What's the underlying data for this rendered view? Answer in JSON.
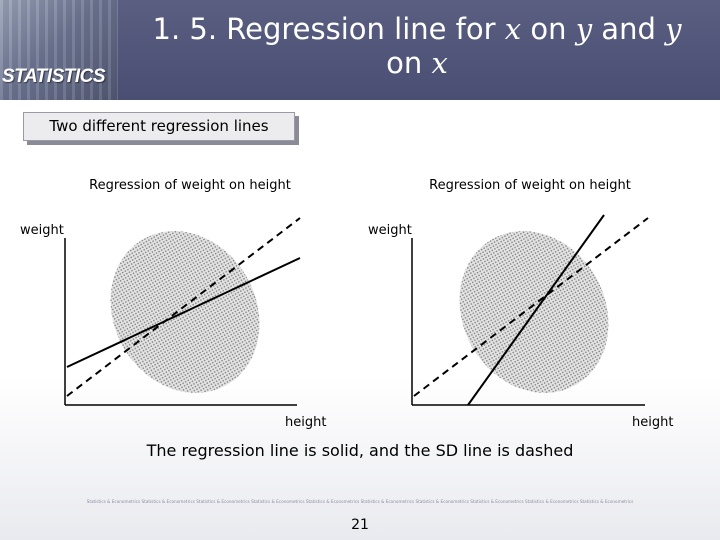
{
  "header": {
    "brand": "STATISTICS",
    "title_parts": [
      "1. 5. Regression line for ",
      "x",
      " on ",
      "y",
      " and ",
      "y",
      " on ",
      "x"
    ]
  },
  "subtitle": "Two different regression lines",
  "panels": [
    {
      "title": "Regression of weight on height",
      "y_label": "weight",
      "x_label": "height",
      "solid_line": "regression line (flatter than SD line)",
      "dashed_line": "SD line"
    },
    {
      "title": "Regression of weight on height",
      "y_label": "weight",
      "x_label": "height",
      "solid_line": "regression line (steeper than SD line)",
      "dashed_line": "SD line"
    }
  ],
  "caption": "The regression line is solid, and the SD line is dashed",
  "footer_text": "Statistics & Econometrics Statistics & Econometrics Statistics & Econometrics Statistics & Econometrics Statistics & Econometrics Statistics & Econometrics Statistics & Econometrics Statistics & Econometrics Statistics & Econometrics Statistics & Econometrics",
  "page_number": "21",
  "colors": {
    "header": "#4f547a",
    "cloud": "#b8b8b8",
    "line": "#000000"
  }
}
